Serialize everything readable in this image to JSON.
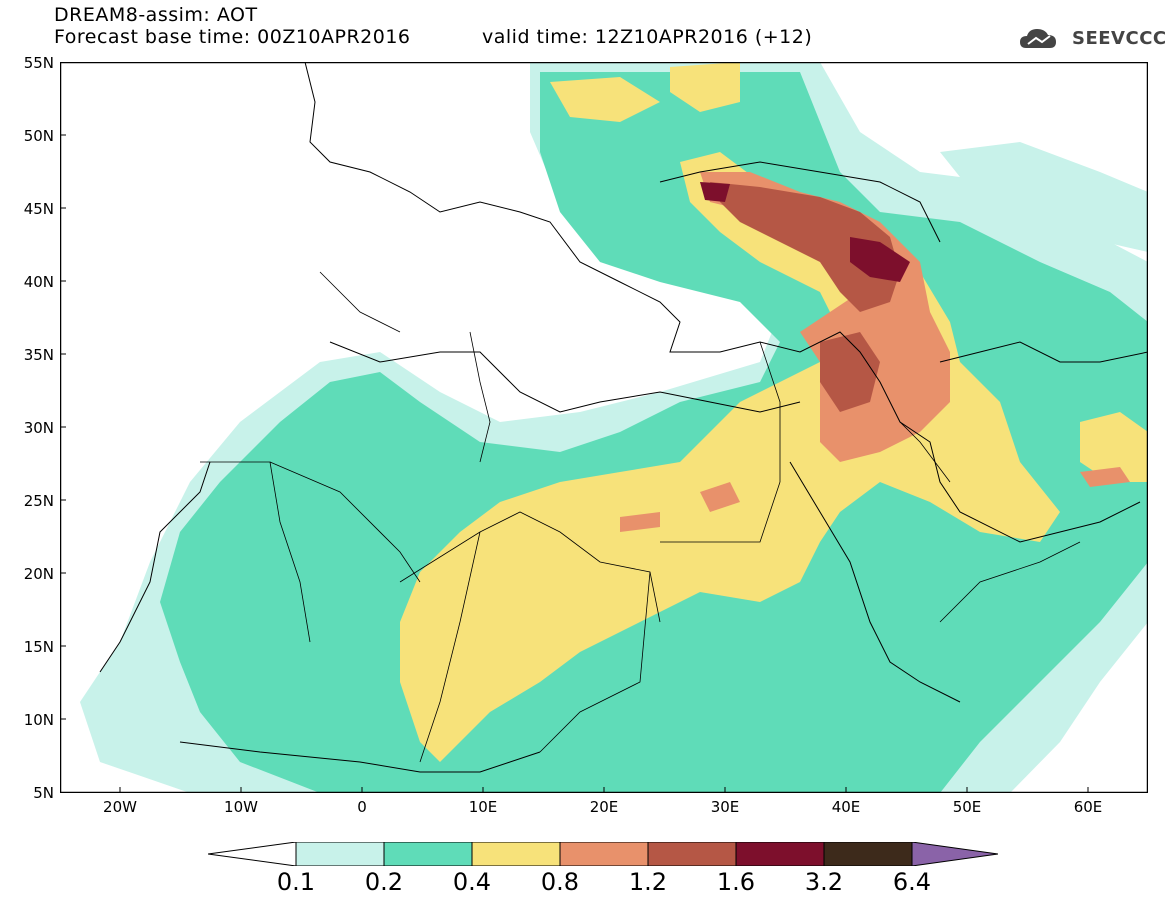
{
  "header": {
    "line1": "DREAM8-assim: AOT",
    "line2": "Forecast base time: 00Z10APR2016",
    "valid": "valid time: 12Z10APR2016 (+12)",
    "logo_text": "SEEVCCC"
  },
  "axes": {
    "lat_labels": [
      "55N",
      "50N",
      "45N",
      "40N",
      "35N",
      "30N",
      "25N",
      "20N",
      "15N",
      "10N",
      "5N"
    ],
    "lon_labels": [
      "20W",
      "10W",
      "0",
      "10E",
      "20E",
      "30E",
      "40E",
      "50E",
      "60E"
    ]
  },
  "legend": {
    "levels": [
      "0.1",
      "0.2",
      "0.4",
      "0.8",
      "1.2",
      "1.6",
      "3.2",
      "6.4"
    ],
    "colors": [
      "#ffffff",
      "#c8f2ea",
      "#5fdcb8",
      "#f7e27a",
      "#e8916b",
      "#b55745",
      "#7d0f2c",
      "#3d2a1b",
      "#8a63a8"
    ]
  },
  "map": {
    "projection": "lat-lon",
    "lon_range": [
      -25,
      65
    ],
    "lat_range": [
      5,
      55
    ],
    "field": "AOT"
  }
}
